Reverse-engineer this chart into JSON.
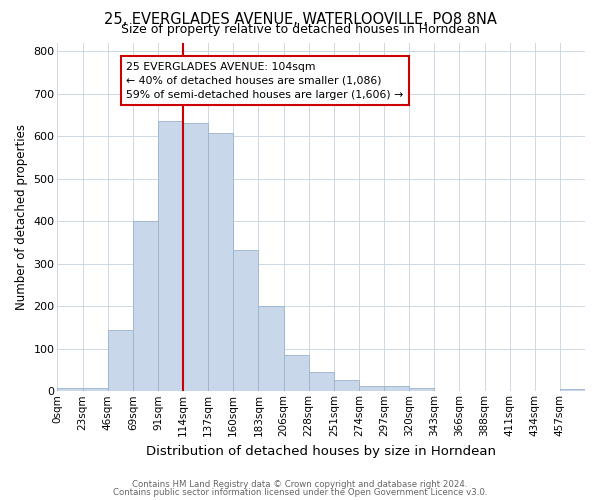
{
  "title1": "25, EVERGLADES AVENUE, WATERLOOVILLE, PO8 8NA",
  "title2": "Size of property relative to detached houses in Horndean",
  "xlabel": "Distribution of detached houses by size in Horndean",
  "ylabel": "Number of detached properties",
  "bin_labels": [
    "0sqm",
    "23sqm",
    "46sqm",
    "69sqm",
    "91sqm",
    "114sqm",
    "137sqm",
    "160sqm",
    "183sqm",
    "206sqm",
    "228sqm",
    "251sqm",
    "274sqm",
    "297sqm",
    "320sqm",
    "343sqm",
    "366sqm",
    "388sqm",
    "411sqm",
    "434sqm",
    "457sqm"
  ],
  "bar_heights": [
    7,
    7,
    143,
    400,
    635,
    630,
    607,
    333,
    200,
    85,
    45,
    27,
    12,
    12,
    8,
    0,
    0,
    0,
    0,
    0,
    5
  ],
  "bar_color": "#c8d8ea",
  "bar_edgecolor": "#9ab4cc",
  "vline_x": 5,
  "vline_color": "#cc0000",
  "annotation_text": "25 EVERGLADES AVENUE: 104sqm\n← 40% of detached houses are smaller (1,086)\n59% of semi-detached houses are larger (1,606) →",
  "annotation_box_color": "#ffffff",
  "annotation_box_edgecolor": "#cc0000",
  "footer1": "Contains HM Land Registry data © Crown copyright and database right 2024.",
  "footer2": "Contains public sector information licensed under the Open Government Licence v3.0.",
  "ylim": [
    0,
    820
  ],
  "yticks": [
    0,
    100,
    200,
    300,
    400,
    500,
    600,
    700,
    800
  ],
  "background_color": "#ffffff",
  "grid_color": "#ccd8e4"
}
